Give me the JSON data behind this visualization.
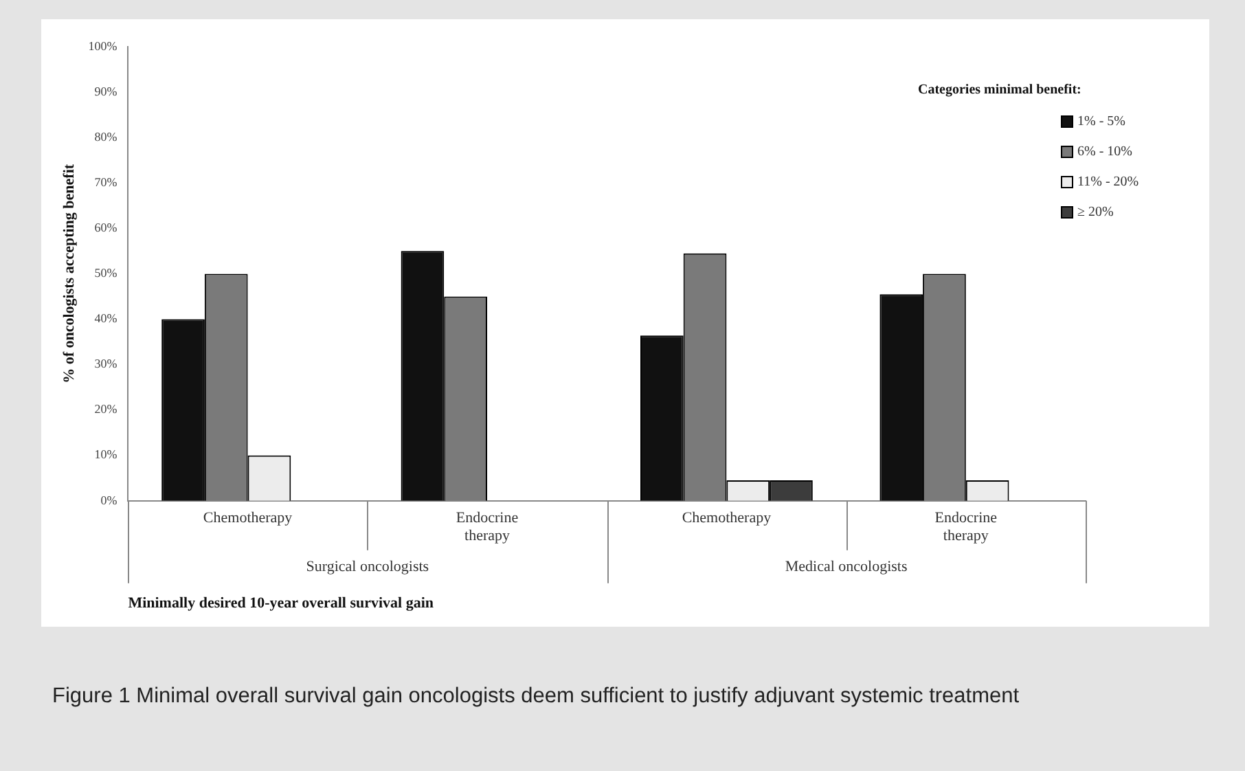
{
  "chart_data": {
    "type": "bar",
    "title": "Figure 1 Minimal overall survival gain oncologists deem sufficient to justify adjuvant systemic treatment",
    "xlabel": "Minimally desired 10-year overall survival gain",
    "ylabel": "% of oncologists accepting benefit",
    "legend_title": "Categories minimal benefit:",
    "categories": [
      "Chemotherapy",
      "Endocrine therapy",
      "Chemotherapy",
      "Endocrine therapy"
    ],
    "annotations": [
      "Surgical oncologists",
      "Medical oncologists"
    ],
    "series": [
      {
        "name": "1% - 5%",
        "color": "#111111",
        "values": [
          40,
          55,
          36.4,
          45.5
        ]
      },
      {
        "name": "6% - 10%",
        "color": "#7a7a7a",
        "values": [
          50,
          45,
          54.5,
          50
        ]
      },
      {
        "name": "11% - 20%",
        "color": "#ececec",
        "values": [
          10,
          0,
          4.5,
          4.5
        ]
      },
      {
        "name": "≥ 20%",
        "color": "#3c3c3c",
        "values": [
          0,
          0,
          4.5,
          0
        ]
      }
    ],
    "ylim": [
      0,
      100
    ],
    "yticks": [
      {
        "value": 0,
        "label": "0%"
      },
      {
        "value": 10,
        "label": "10%"
      },
      {
        "value": 20,
        "label": "20%"
      },
      {
        "value": 30,
        "label": "30%"
      },
      {
        "value": 40,
        "label": "40%"
      },
      {
        "value": 50,
        "label": "50%"
      },
      {
        "value": 60,
        "label": "60%"
      },
      {
        "value": 70,
        "label": "70%"
      },
      {
        "value": 80,
        "label": "80%"
      },
      {
        "value": 90,
        "label": "90%"
      },
      {
        "value": 100,
        "label": "100%"
      }
    ],
    "grid": false,
    "legend": "top right"
  }
}
